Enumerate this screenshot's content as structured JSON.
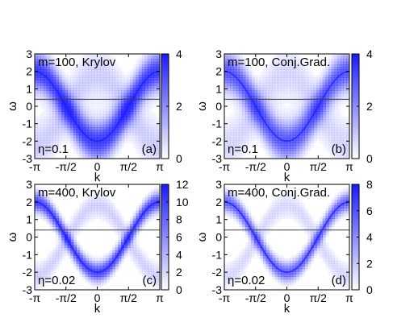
{
  "chart_data": [
    {
      "type": "heatmap",
      "label": "m=100, Krylov",
      "eta_label": "η=0.1",
      "panel_label": "(a)",
      "xlabel": "k",
      "ylabel": "ω",
      "xlim": [
        -3.14159,
        3.14159
      ],
      "ylim": [
        -3,
        3
      ],
      "xticks": [
        "-π",
        "-π/2",
        "0",
        "π/2",
        "π"
      ],
      "yticks": [
        "-3",
        "-2",
        "-1",
        "0",
        "1",
        "2",
        "3"
      ],
      "colorbar": {
        "min": 0,
        "max": 4,
        "ticks": [
          "0",
          "2",
          "4"
        ]
      },
      "reference_line_y": 0.4,
      "band_sharpness": 0.12,
      "band_intensity": 3.6
    },
    {
      "type": "heatmap",
      "label": "m=100, Conj.Grad.",
      "eta_label": "η=0.1",
      "panel_label": "(b)",
      "xlabel": "k",
      "ylabel": "ω",
      "xlim": [
        -3.14159,
        3.14159
      ],
      "ylim": [
        -3,
        3
      ],
      "xticks": [
        "-π",
        "-π/2",
        "0",
        "π/2",
        "π"
      ],
      "yticks": [
        "-3",
        "-2",
        "-1",
        "0",
        "1",
        "2",
        "3"
      ],
      "colorbar": {
        "min": 0,
        "max": 4,
        "ticks": [
          "0",
          "2",
          "4"
        ]
      },
      "reference_line_y": 0.4,
      "band_sharpness": 0.12,
      "band_intensity": 3.0
    },
    {
      "type": "heatmap",
      "label": "m=400, Krylov",
      "eta_label": "η=0.02",
      "panel_label": "(c)",
      "xlabel": "k",
      "ylabel": "ω",
      "xlim": [
        -3.14159,
        3.14159
      ],
      "ylim": [
        -3,
        3
      ],
      "xticks": [
        "-π",
        "-π/2",
        "0",
        "π/2",
        "π"
      ],
      "yticks": [
        "-3",
        "-2",
        "-1",
        "0",
        "1",
        "2",
        "3"
      ],
      "colorbar": {
        "min": 0,
        "max": 12,
        "ticks": [
          "0",
          "2",
          "4",
          "6",
          "8",
          "10",
          "12"
        ]
      },
      "reference_line_y": 0.4,
      "band_sharpness": 0.06,
      "band_intensity": 10
    },
    {
      "type": "heatmap",
      "label": "m=400, Conj.Grad.",
      "eta_label": "η=0.02",
      "panel_label": "(d)",
      "xlabel": "k",
      "ylabel": "ω",
      "xlim": [
        -3.14159,
        3.14159
      ],
      "ylim": [
        -3,
        3
      ],
      "xticks": [
        "-π",
        "-π/2",
        "0",
        "π/2",
        "π"
      ],
      "yticks": [
        "-3",
        "-2",
        "-1",
        "0",
        "1",
        "2",
        "3"
      ],
      "colorbar": {
        "min": 0,
        "max": 8,
        "ticks": [
          "0",
          "2",
          "4",
          "6",
          "8"
        ]
      },
      "reference_line_y": 0.4,
      "band_sharpness": 0.06,
      "band_intensity": 5.5
    }
  ],
  "colors": {
    "colormap_low": "#ffffff",
    "colormap_high": "#1a1aff",
    "axis": "#000000",
    "reference_line": "#444444"
  }
}
